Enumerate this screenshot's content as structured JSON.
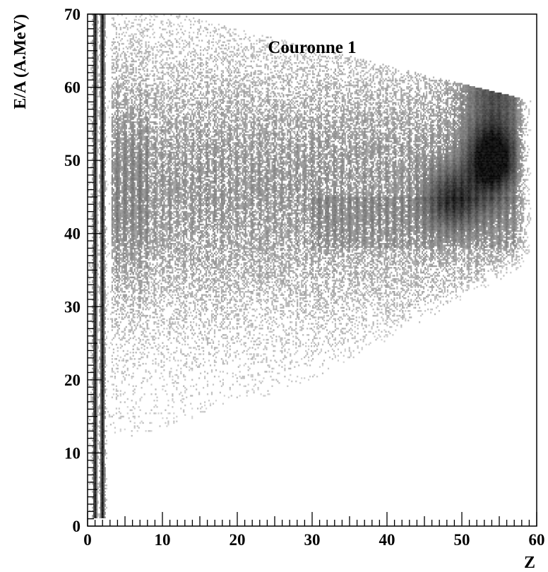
{
  "chart_data": {
    "type": "heatmap",
    "title": "Couronne 1",
    "xlabel": "Z",
    "ylabel": "E/A (A.MeV)",
    "xlim": [
      0,
      60
    ],
    "ylim": [
      0,
      70
    ],
    "x_ticks": [
      0,
      10,
      20,
      30,
      40,
      50,
      60
    ],
    "y_ticks": [
      0,
      10,
      20,
      30,
      40,
      50,
      60,
      70
    ],
    "x_tick_labels": [
      "0",
      "10",
      "20",
      "30",
      "40",
      "50",
      "60"
    ],
    "y_tick_labels": [
      "0",
      "10",
      "20",
      "30",
      "40",
      "50",
      "60",
      "70"
    ],
    "grid": false,
    "colormap": "grayscale",
    "density_features": [
      {
        "region": "light-particles",
        "z_range": [
          1,
          2
        ],
        "e_range": [
          0,
          70
        ],
        "level": 0.9
      },
      {
        "region": "intermediate-mass-fragments",
        "z_range": [
          3,
          40
        ],
        "e_range": [
          15,
          60
        ],
        "level": 0.35
      },
      {
        "region": "quasi-projectile",
        "z_range": [
          46,
          57
        ],
        "e_range": [
          42,
          56
        ],
        "level": 0.95
      },
      {
        "region": "tail-upper",
        "z_range": [
          50,
          58
        ],
        "e_range": [
          55,
          66
        ],
        "level": 0.45
      }
    ]
  },
  "colors": {
    "axis": "#000000",
    "background": "#ffffff",
    "density_max": "#222222",
    "density_min": "#d8d8d8"
  }
}
